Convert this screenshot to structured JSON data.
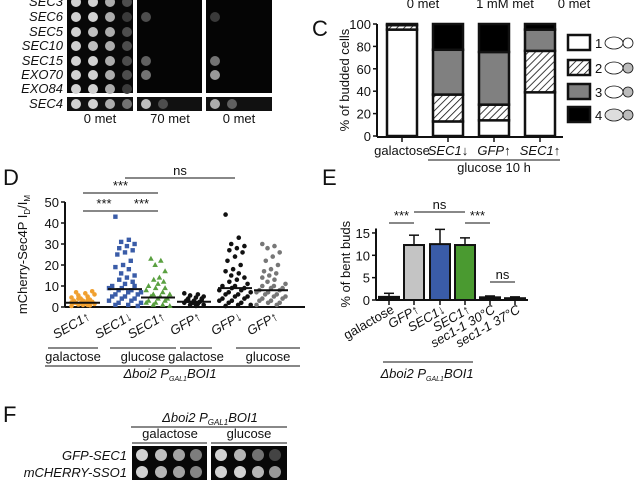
{
  "panelA": {
    "rows": [
      "SEC3",
      "SEC6",
      "SEC5",
      "SEC10",
      "SEC15",
      "EXO70",
      "EXO84"
    ],
    "sec4_row": "SEC4",
    "plate_labels": [
      "0 met",
      "70 met",
      "0 met"
    ],
    "growth": [
      [
        [
          1,
          1,
          0.8,
          0.3
        ],
        [
          0,
          0,
          0,
          0
        ],
        [
          0,
          0,
          0,
          0
        ]
      ],
      [
        [
          1,
          1,
          0.8,
          0.2
        ],
        [
          0.3,
          0,
          0,
          0
        ],
        [
          0.2,
          0,
          0,
          0
        ]
      ],
      [
        [
          1,
          0.9,
          0.8,
          0.3
        ],
        [
          0,
          0,
          0,
          0
        ],
        [
          0,
          0,
          0,
          0
        ]
      ],
      [
        [
          1,
          0.9,
          0.8,
          0.3
        ],
        [
          0,
          0,
          0,
          0
        ],
        [
          0,
          0,
          0,
          0
        ]
      ],
      [
        [
          1,
          1,
          0.8,
          0.3
        ],
        [
          0.4,
          0,
          0,
          0
        ],
        [
          0.5,
          0,
          0,
          0
        ]
      ],
      [
        [
          1,
          1,
          0.8,
          0.3
        ],
        [
          0.5,
          0,
          0,
          0
        ],
        [
          0.7,
          0,
          0,
          0
        ]
      ],
      [
        [
          1,
          1,
          0.8,
          0.2
        ],
        [
          0,
          0,
          0,
          0
        ],
        [
          0,
          0,
          0,
          0
        ]
      ]
    ],
    "sec4_growth": [
      [
        1,
        1,
        0.8,
        0.5
      ],
      [
        0.9,
        0.3,
        0,
        0
      ],
      [
        0.8,
        0.4,
        0,
        0
      ]
    ]
  },
  "top_headers": [
    "0 met",
    "1 mM met",
    "0 met"
  ],
  "chart_data": [
    {
      "panel": "C",
      "type": "bar",
      "stacked": true,
      "ylabel": "% of budded cells",
      "ylim": [
        0,
        100
      ],
      "yticks": [
        "0",
        "20",
        "40",
        "60",
        "80",
        "100"
      ],
      "categories": [
        "galactose",
        "SEC1↓",
        "GFP↑",
        "SEC1↑"
      ],
      "group_label": "glucose 10 h",
      "series": [
        {
          "name": "1",
          "values": [
            95,
            13,
            14,
            39
          ],
          "color": "#ffffff",
          "pattern": "none"
        },
        {
          "name": "2",
          "values": [
            4,
            24,
            14,
            37
          ],
          "color": "#ffffff",
          "pattern": "hatch"
        },
        {
          "name": "3",
          "values": [
            0,
            40,
            47,
            19
          ],
          "color": "#808080",
          "pattern": "none"
        },
        {
          "name": "4",
          "values": [
            1,
            23,
            25,
            5
          ],
          "color": "#000000",
          "pattern": "none"
        }
      ],
      "legend": [
        "1",
        "2",
        "3",
        "4"
      ],
      "legend_placement": "right"
    },
    {
      "panel": "D",
      "type": "scatter",
      "ylabel_main": "mCherry-Sec4P I",
      "ylabel_sub1": "D",
      "ylabel_mid": "/I",
      "ylabel_sub2": "M",
      "ylim": [
        0,
        50
      ],
      "yticks": [
        "0",
        "10",
        "20",
        "30",
        "40",
        "50"
      ],
      "categories": [
        "SEC1↑",
        "SEC1↓",
        "SEC1↑",
        "GFP↑",
        "GFP↓",
        "GFP↑"
      ],
      "conditions": [
        "galactose",
        "glucose",
        "galactose",
        "glucose"
      ],
      "strain": {
        "main": "Δboi2  P",
        "sub": "GAL1",
        "tail": "BOI1"
      },
      "series": [
        {
          "name": "SEC1↑ galactose",
          "color": "#f0a030",
          "marker": "circle",
          "mean": 2,
          "values": [
            0.5,
            1,
            1.2,
            1.5,
            2,
            2,
            2.5,
            3,
            3,
            3.5,
            4,
            4.5,
            5,
            5.5,
            6,
            6.5,
            7,
            7.5,
            1,
            2,
            0.8,
            1.8,
            2.2,
            3.2,
            4
          ]
        },
        {
          "name": "SEC1↓ glucose",
          "color": "#3a5ca8",
          "marker": "square",
          "mean": 8.5,
          "values": [
            43,
            32,
            31,
            30,
            29,
            28,
            27,
            26,
            25,
            22,
            20,
            19,
            18,
            16,
            15,
            14,
            13,
            12,
            11,
            10,
            10,
            9,
            9,
            8,
            8,
            7,
            7,
            6,
            6,
            5,
            5,
            4,
            4,
            3,
            3,
            2,
            2,
            1,
            1,
            0.5
          ]
        },
        {
          "name": "SEC1↑ glucose",
          "color": "#5aa040",
          "marker": "triangle",
          "mean": 4.5,
          "values": [
            23,
            22,
            20,
            17,
            14,
            13,
            12,
            11,
            10,
            9,
            9,
            8,
            7,
            6,
            6,
            5,
            5,
            4,
            4,
            3,
            3,
            2,
            2,
            1,
            1,
            0.5
          ]
        },
        {
          "name": "GFP↑ galactose",
          "color": "#111111",
          "marker": "circle",
          "mean": 2.5,
          "values": [
            6.5,
            6,
            5.5,
            5,
            4.5,
            4,
            3.5,
            3,
            3,
            2.5,
            2,
            2,
            1.5,
            1,
            1,
            0.5,
            3,
            4,
            2
          ]
        },
        {
          "name": "GFP↓ glucose",
          "color": "#111111",
          "marker": "circle",
          "mean": 9,
          "values": [
            44,
            33,
            30,
            29,
            28,
            27,
            26,
            24,
            22,
            20,
            18,
            17,
            16,
            15,
            14,
            13,
            12,
            11,
            10,
            10,
            9,
            9,
            8,
            8,
            7,
            7,
            6,
            6,
            5,
            5,
            4,
            4,
            3,
            3,
            2,
            2,
            1,
            1,
            0.5
          ]
        },
        {
          "name": "GFP↑ glucose",
          "color": "#777777",
          "marker": "circle",
          "mean": 8,
          "values": [
            30,
            29,
            28,
            26,
            24,
            22,
            20,
            18,
            17,
            16,
            15,
            14,
            13,
            12,
            11,
            10,
            10,
            9,
            9,
            8,
            8,
            7,
            7,
            6,
            6,
            5,
            5,
            4,
            4,
            3,
            3,
            2,
            2,
            1,
            1
          ]
        }
      ],
      "significance": [
        {
          "from": 0,
          "to": 1,
          "label": "***"
        },
        {
          "from": 1,
          "to": 2,
          "label": "***"
        },
        {
          "from": 0,
          "to": 2,
          "label": "***"
        },
        {
          "from": 1,
          "to": 4,
          "label": "ns"
        }
      ]
    },
    {
      "panel": "E",
      "type": "bar",
      "ylabel": "% of bent buds",
      "ylim": [
        0,
        17
      ],
      "yticks": [
        "0",
        "5",
        "10",
        "15"
      ],
      "categories": [
        "galactose",
        "GFP↑",
        "SEC1↓",
        "SEC1↑",
        "sec1-1 30°C",
        "sec1-1 37°C"
      ],
      "values": [
        0.7,
        12.3,
        12.5,
        12.3,
        0.6,
        0.4
      ],
      "errors": [
        0.8,
        2.2,
        3.3,
        1.6,
        0.3,
        0.3
      ],
      "colors": [
        "#111111",
        "#c4c4c4",
        "#3a5ca8",
        "#4a9a30",
        "#111111",
        "#111111"
      ],
      "strain": {
        "main": "Δboi2  P",
        "sub": "GAL1",
        "tail": "BOI1"
      },
      "significance": [
        {
          "from": 0,
          "to": 1,
          "label": "***"
        },
        {
          "from": 1,
          "to": 3,
          "label": "ns"
        },
        {
          "from": 3,
          "to": 4,
          "label": "***"
        },
        {
          "from": 4,
          "to": 5,
          "label": "ns"
        }
      ]
    }
  ],
  "panelF": {
    "title": {
      "main": "Δboi2  P",
      "sub": "GAL1",
      "tail": "BOI1"
    },
    "conditions": [
      "galactose",
      "glucose"
    ],
    "rows": [
      "GFP-SEC1",
      "mCHERRY-SSO1"
    ],
    "growth": [
      [
        [
          1,
          0.9,
          0.75,
          0.55
        ],
        [
          1,
          0.85,
          0.5,
          0.25
        ]
      ],
      [
        [
          1,
          0.85,
          0.75,
          0.6
        ],
        [
          1,
          1,
          0.85,
          0.7
        ]
      ]
    ]
  },
  "panel_letters": [
    "C",
    "D",
    "E",
    "F"
  ]
}
